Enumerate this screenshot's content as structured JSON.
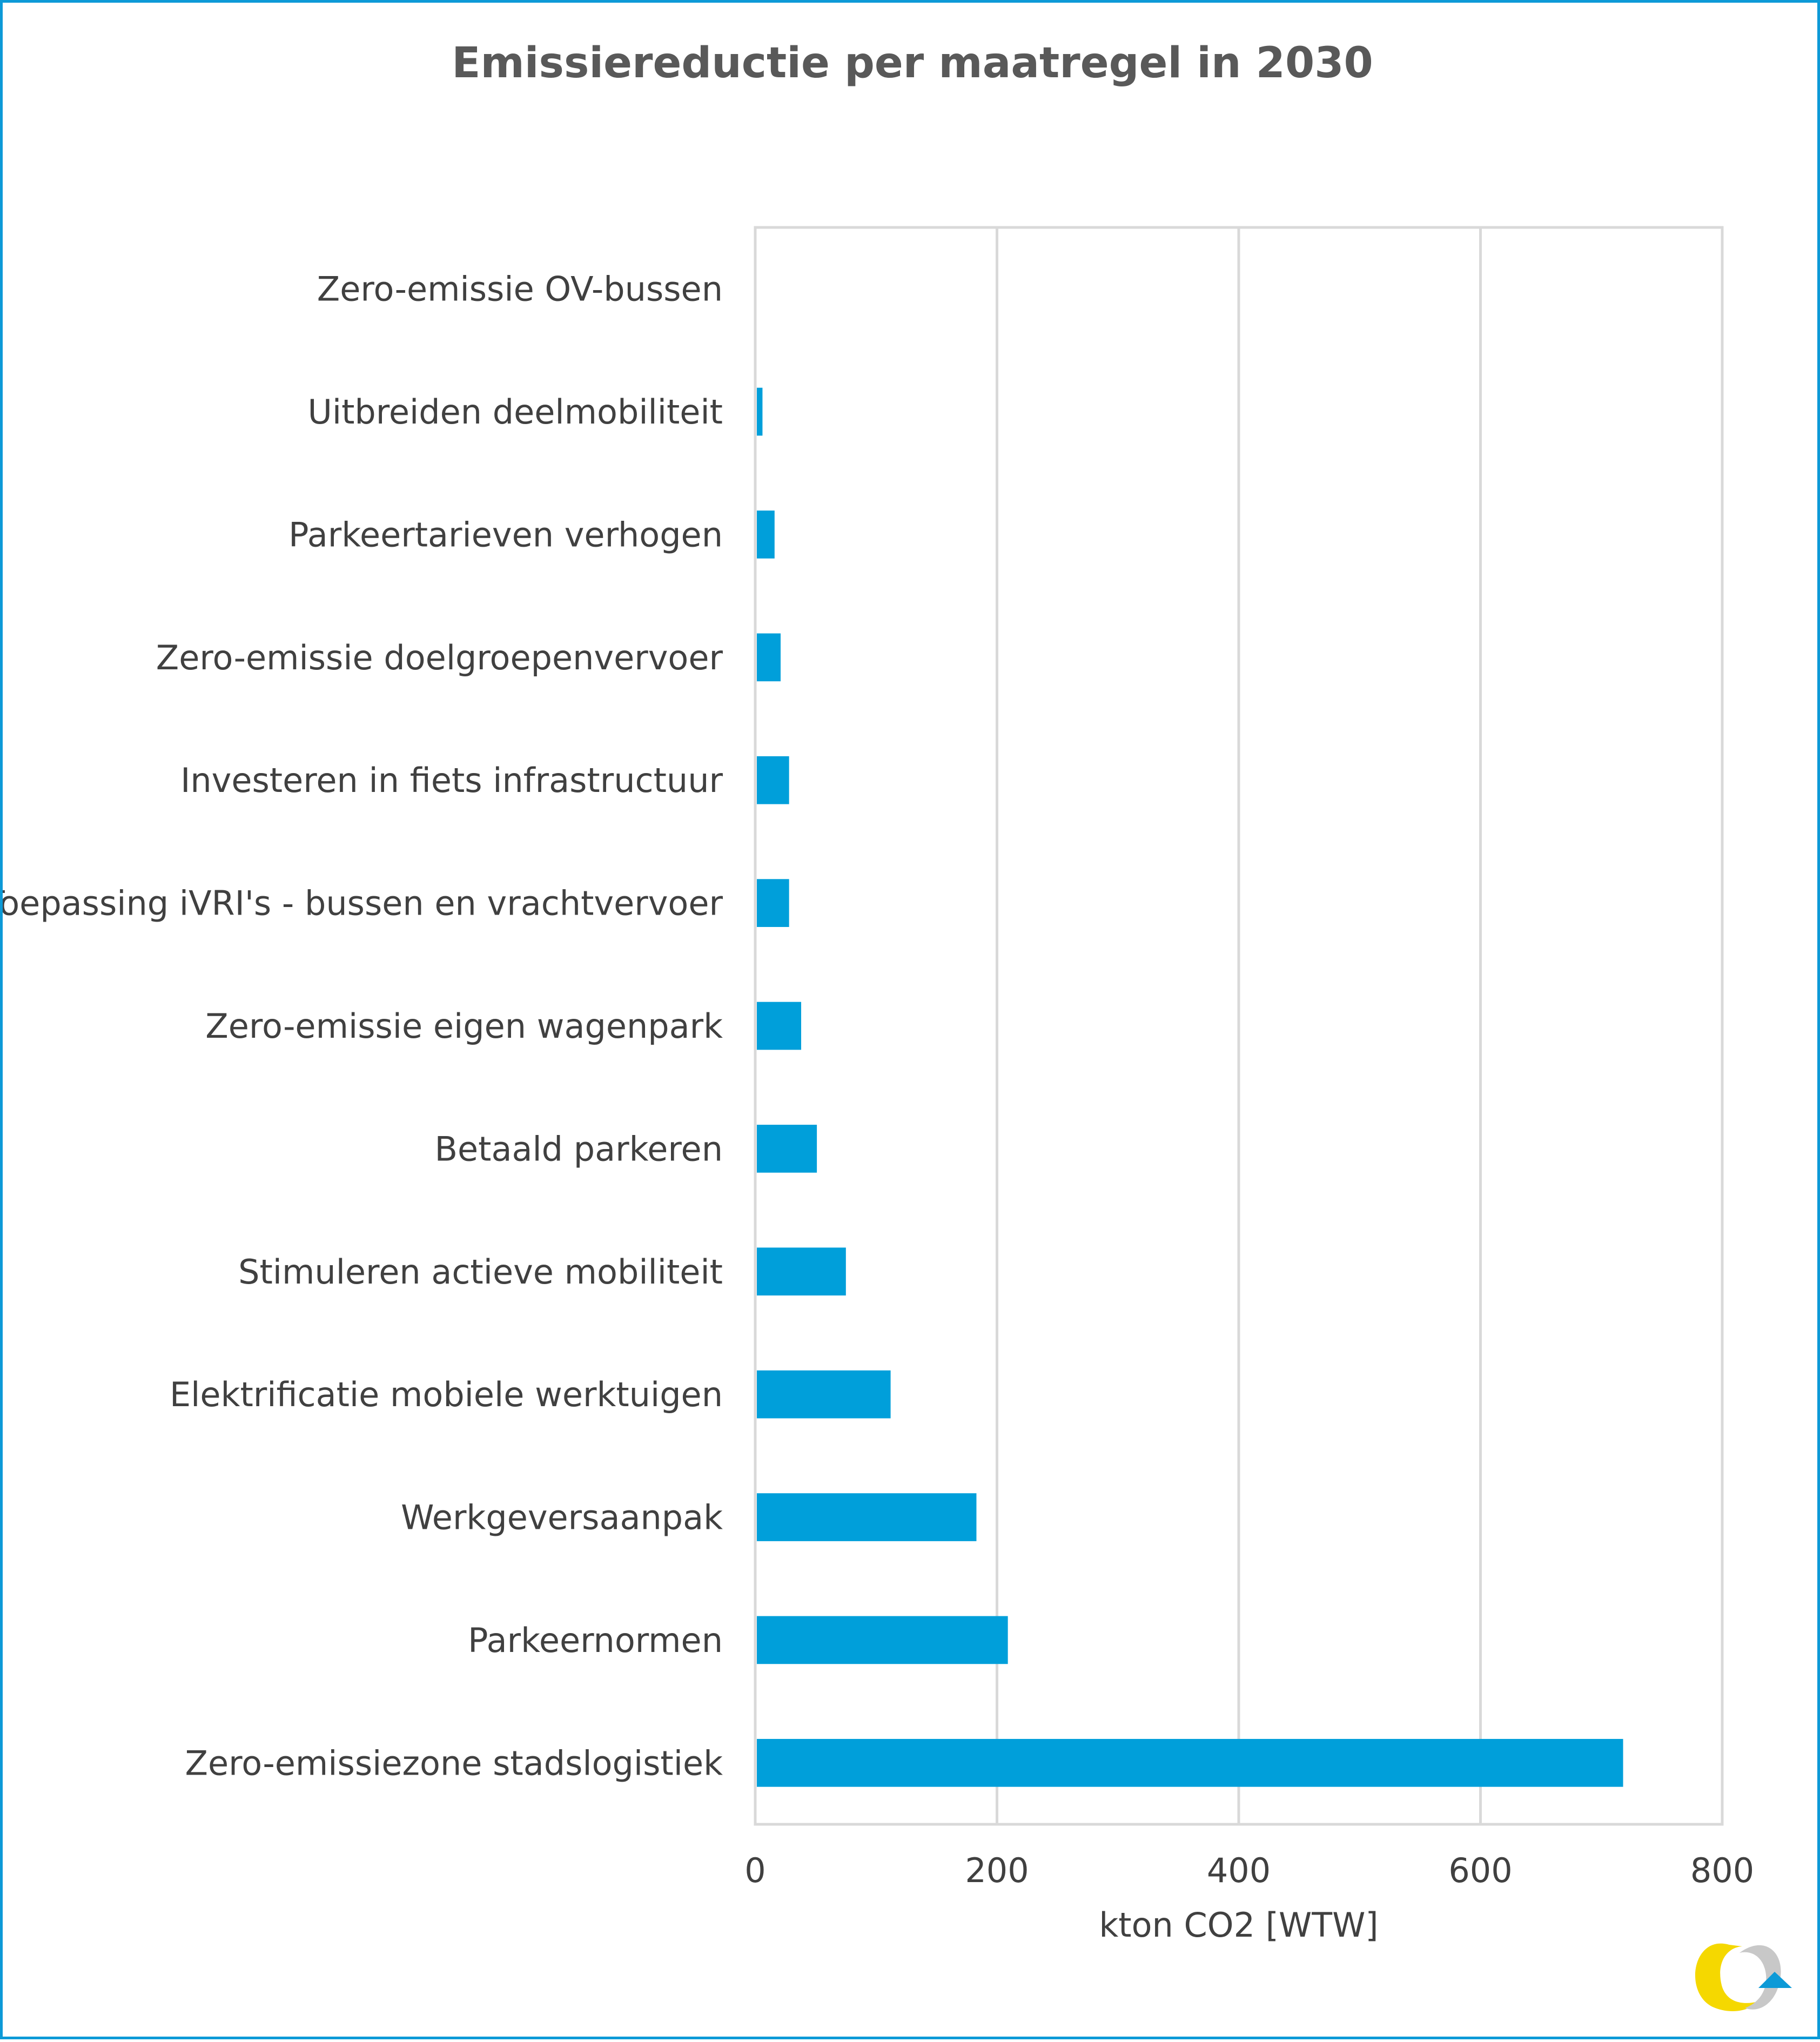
{
  "chart_data": {
    "type": "bar",
    "orientation": "horizontal",
    "title": "Emissiereductie per maatregel in 2030",
    "xlabel": "kton CO2 [WTW]",
    "ylabel": "",
    "xlim": [
      0,
      800
    ],
    "x_ticks": [
      "0",
      "200",
      "400",
      "600",
      "800"
    ],
    "grid": true,
    "bar_color": "#009fda",
    "categories": [
      "Zero-emissie OV-bussen",
      "Uitbreiden deelmobiliteit",
      "Parkeertarieven verhogen",
      "Zero-emissie doelgroepenvervoer",
      "Investeren in fiets infrastructuur",
      "Toepassing iVRI's - bussen en vrachtvervoer",
      "Zero-emissie eigen wagenpark",
      "Betaald parkeren",
      "Stimuleren actieve mobiliteit",
      "Elektrificatie mobiele werktuigen",
      "Werkgeversaanpak",
      "Parkeernormen",
      "Zero-emissiezone stadslogistiek"
    ],
    "values": [
      0,
      6,
      16,
      21,
      28,
      28,
      38,
      51,
      75,
      112,
      183,
      209,
      718
    ]
  },
  "logo": {
    "name": "logo-icon",
    "colors": [
      "#f5d800",
      "#c8c8c8",
      "#0d9ad7"
    ]
  }
}
